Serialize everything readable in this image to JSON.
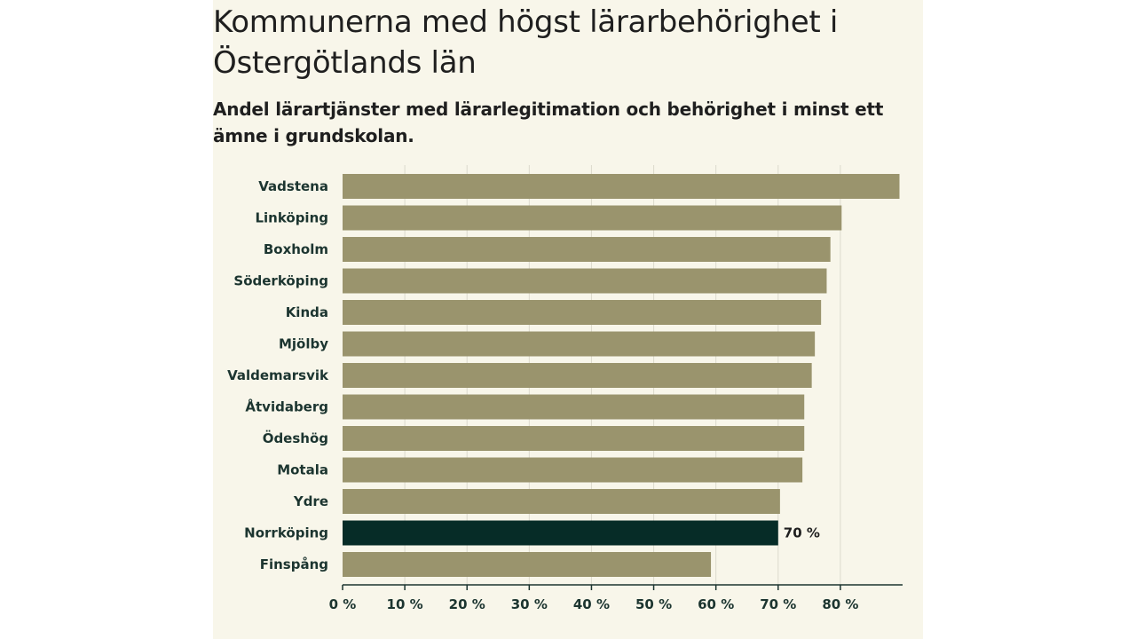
{
  "colors": {
    "bar": "#9a946d",
    "highlight": "#062c27",
    "grid": "#dcdacd",
    "axis": "#1c3530"
  },
  "chart_data": {
    "type": "bar",
    "orientation": "horizontal",
    "title": "Kommunerna med högst lärarbehörighet i Östergötlands län",
    "subtitle": "Andel lärartjänster med lärarlegitimation och behörighet i minst ett ämne i grundskolan.",
    "categories": [
      "Vadstena",
      "Linköping",
      "Boxholm",
      "Söderköping",
      "Kinda",
      "Mjölby",
      "Valdemarsvik",
      "Åtvidaberg",
      "Ödeshög",
      "Motala",
      "Ydre",
      "Norrköping",
      "Finspång"
    ],
    "values": [
      89.5,
      80.2,
      78.4,
      77.8,
      76.9,
      75.9,
      75.4,
      74.2,
      74.2,
      73.9,
      70.3,
      70,
      59.2
    ],
    "highlight_index": 11,
    "data_labels": [
      {
        "index": 11,
        "text": "70 %"
      }
    ],
    "xlim": [
      0,
      90
    ],
    "xticks": [
      0,
      10,
      20,
      30,
      40,
      50,
      60,
      70,
      80
    ],
    "xtick_labels": [
      "0 %",
      "10 %",
      "20 %",
      "30 %",
      "40 %",
      "50 %",
      "60 %",
      "70 %",
      "80 %"
    ],
    "grid": true
  }
}
